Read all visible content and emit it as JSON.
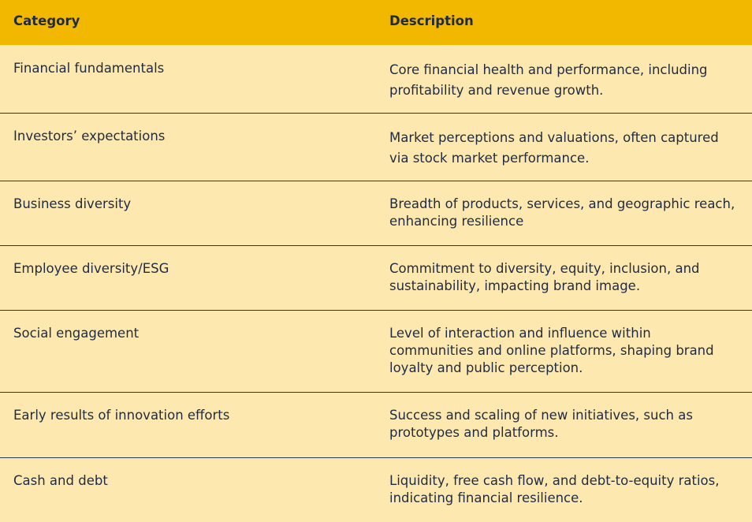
{
  "header": {
    "category": "Category",
    "description": "Description"
  },
  "rows": [
    {
      "category": "Financial fundamentals",
      "description": "Core financial health and performance, including profitability and revenue growth."
    },
    {
      "category": "Investors’ expectations",
      "description": "Market perceptions and valuations, often captured via stock market performance."
    },
    {
      "category": "Business diversity",
      "description": "Breadth of products, services, and geographic reach, enhancing resilience"
    },
    {
      "category": "Employee diversity/ESG",
      "description": "Commitment to diversity, equity, inclusion, and sustainability, impacting brand image."
    },
    {
      "category": "Social engagement",
      "description": "Level of interaction and influence within communities and online platforms, shaping brand loyalty and public perception."
    },
    {
      "category": "Early results of innovation efforts",
      "description": "Success and scaling of new initiatives, such as prototypes and platforms."
    },
    {
      "category": "Cash and debt",
      "description": "Liquidity, free cash flow, and debt-to-equity ratios, indicating financial resilience."
    }
  ]
}
